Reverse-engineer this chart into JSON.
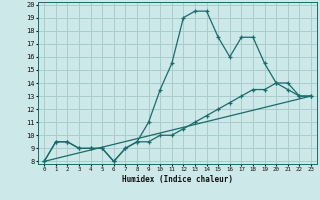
{
  "title": "",
  "xlabel": "Humidex (Indice chaleur)",
  "xlim": [
    -0.5,
    23.5
  ],
  "ylim": [
    7.8,
    20.2
  ],
  "yticks": [
    8,
    9,
    10,
    11,
    12,
    13,
    14,
    15,
    16,
    17,
    18,
    19,
    20
  ],
  "xticks": [
    0,
    1,
    2,
    3,
    4,
    5,
    6,
    7,
    8,
    9,
    10,
    11,
    12,
    13,
    14,
    15,
    16,
    17,
    18,
    19,
    20,
    21,
    22,
    23
  ],
  "bg_color": "#cce8e8",
  "grid_color": "#aacccc",
  "line_color": "#1a6b6b",
  "line1_x": [
    0,
    1,
    2,
    3,
    4,
    5,
    6,
    7,
    8,
    9,
    10,
    11,
    12,
    13,
    14,
    15,
    16,
    17,
    18,
    19,
    20,
    21,
    22,
    23
  ],
  "line1_y": [
    8.0,
    9.5,
    9.5,
    9.0,
    9.0,
    9.0,
    8.0,
    9.0,
    9.5,
    11.0,
    13.5,
    15.5,
    19.0,
    19.5,
    19.5,
    17.5,
    16.0,
    17.5,
    17.5,
    15.5,
    14.0,
    13.5,
    13.0,
    13.0
  ],
  "line2_x": [
    0,
    1,
    2,
    3,
    4,
    5,
    6,
    7,
    8,
    9,
    10,
    11,
    12,
    13,
    14,
    15,
    16,
    17,
    18,
    19,
    20,
    21,
    22,
    23
  ],
  "line2_y": [
    8.0,
    9.5,
    9.5,
    9.0,
    9.0,
    9.0,
    8.0,
    9.0,
    9.5,
    9.5,
    10.0,
    10.0,
    10.5,
    11.0,
    11.5,
    12.0,
    12.5,
    13.0,
    13.5,
    13.5,
    14.0,
    14.0,
    13.0,
    13.0
  ],
  "line3_x": [
    0,
    23
  ],
  "line3_y": [
    8.0,
    13.0
  ]
}
